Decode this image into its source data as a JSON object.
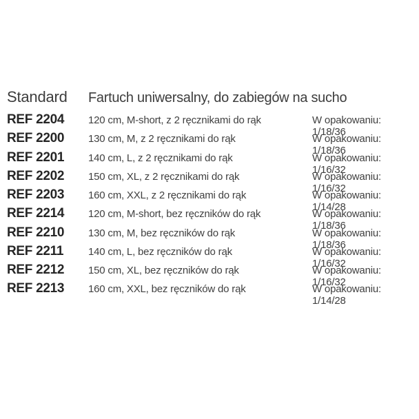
{
  "page": {
    "background": "#ffffff",
    "text_color_primary": "#262626",
    "text_color_secondary": "#404040",
    "text_color_header": "#3d3d3d"
  },
  "table": {
    "series_label": "Standard",
    "title": "Fartuch uniwersalny, do zabiegów na sucho",
    "rows": [
      {
        "ref": "REF 2204",
        "description": "120 cm, M-short, z 2 ręcznikami do rąk",
        "packaging": "W opakowaniu: 1/18/36"
      },
      {
        "ref": "REF 2200",
        "description": "130 cm, M, z 2 ręcznikami do rąk",
        "packaging": "W opakowaniu: 1/18/36"
      },
      {
        "ref": "REF 2201",
        "description": "140 cm, L, z 2 ręcznikami do rąk",
        "packaging": "W opakowaniu: 1/16/32"
      },
      {
        "ref": "REF 2202",
        "description": "150 cm, XL, z 2 ręcznikami do rąk",
        "packaging": "W opakowaniu: 1/16/32"
      },
      {
        "ref": "REF 2203",
        "description": "160 cm, XXL, z 2 ręcznikami do rąk",
        "packaging": "W opakowaniu: 1/14/28"
      },
      {
        "ref": "REF 2214",
        "description": "120 cm, M-short, bez ręczników do rąk",
        "packaging": "W opakowaniu: 1/18/36"
      },
      {
        "ref": "REF 2210",
        "description": "130 cm, M, bez ręczników do rąk",
        "packaging": "W opakowaniu: 1/18/36"
      },
      {
        "ref": "REF 2211",
        "description": "140 cm, L, bez ręczników do rąk",
        "packaging": "W opakowaniu: 1/16/32"
      },
      {
        "ref": "REF 2212",
        "description": "150 cm, XL, bez ręczników do rąk",
        "packaging": "W opakowaniu: 1/16/32"
      },
      {
        "ref": "REF 2213",
        "description": "160 cm, XXL, bez ręczników do rąk",
        "packaging": "W opakowaniu: 1/14/28"
      }
    ]
  }
}
